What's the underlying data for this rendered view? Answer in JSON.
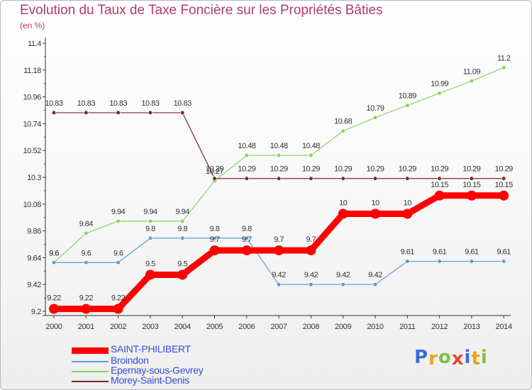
{
  "chart_data": {
    "type": "line",
    "title": "Evolution du Taux de Taxe Foncière sur les Propriétés Bâties",
    "ylabel": "(en %)",
    "xlabel": "",
    "ylim": [
      9.2,
      11.4
    ],
    "yticks": [
      "9.2",
      "9.42",
      "9.64",
      "9.86",
      "10.08",
      "10.3",
      "10.52",
      "10.74",
      "10.96",
      "11.18",
      "11.4"
    ],
    "x": [
      "2000",
      "2001",
      "2002",
      "2003",
      "2004",
      "2005",
      "2006",
      "2007",
      "2008",
      "2009",
      "2010",
      "2011",
      "2012",
      "2013",
      "2014"
    ],
    "series": [
      {
        "name": "SAINT-PHILIBERT",
        "color": "#ff0000",
        "values": [
          9.22,
          9.22,
          9.22,
          9.5,
          9.5,
          9.7,
          9.7,
          9.7,
          9.7,
          10,
          10,
          10,
          10.15,
          10.15,
          10.15
        ],
        "labels": [
          "9.22",
          "9.22",
          "9.22",
          "9.5",
          "9.5",
          "9.7",
          "9.7",
          "9.7",
          "9.7",
          "10",
          "10",
          "10",
          "10.15",
          "10.15",
          "10.15"
        ]
      },
      {
        "name": "Broindon",
        "color": "#5a9bd4",
        "values": [
          9.6,
          9.6,
          9.6,
          9.8,
          9.8,
          9.8,
          9.8,
          9.42,
          9.42,
          9.42,
          9.42,
          9.61,
          9.61,
          9.61,
          9.61
        ],
        "labels": [
          "9.6",
          "9.6",
          "9.6",
          "9.8",
          "9.8",
          "9.8",
          "9.8",
          "9.42",
          "9.42",
          "9.42",
          "9.42",
          "9.61",
          "9.61",
          "9.61",
          "9.61"
        ]
      },
      {
        "name": "Epernay-sous-Gevrey",
        "color": "#88d45a",
        "values": [
          9.6,
          9.84,
          9.94,
          9.94,
          9.94,
          10.27,
          10.48,
          10.48,
          10.48,
          10.68,
          10.79,
          10.89,
          10.99,
          11.09,
          11.2
        ],
        "labels": [
          "9.6",
          "9.84",
          "9.94",
          "9.94",
          "9.94",
          "10.27",
          "10.48",
          "10.48",
          "10.48",
          "10.68",
          "10.79",
          "10.89",
          "10.99",
          "11.09",
          "11.2"
        ]
      },
      {
        "name": "Morey-Saint-Denis",
        "color": "#7a2a2a",
        "values": [
          10.83,
          10.83,
          10.83,
          10.83,
          10.83,
          10.29,
          10.29,
          10.29,
          10.29,
          10.29,
          10.29,
          10.29,
          10.29,
          10.29,
          10.29
        ],
        "labels": [
          "10.83",
          "10.83",
          "10.83",
          "10.83",
          "10.83",
          "10.29",
          "10.29",
          "10.29",
          "10.29",
          "10.29",
          "10.29",
          "10.29",
          "10.29",
          "10.29",
          "10.29"
        ]
      }
    ],
    "legend_position": "bottom-left",
    "grid": false
  },
  "brand": {
    "letters": [
      "P",
      "r",
      "o",
      "x",
      "i",
      "t",
      "i"
    ],
    "colors": [
      "#3b6fd6",
      "#f0a020",
      "#7cc242",
      "#e84a2a",
      "#3b6fd6",
      "#f0a020",
      "#7cc242"
    ]
  }
}
